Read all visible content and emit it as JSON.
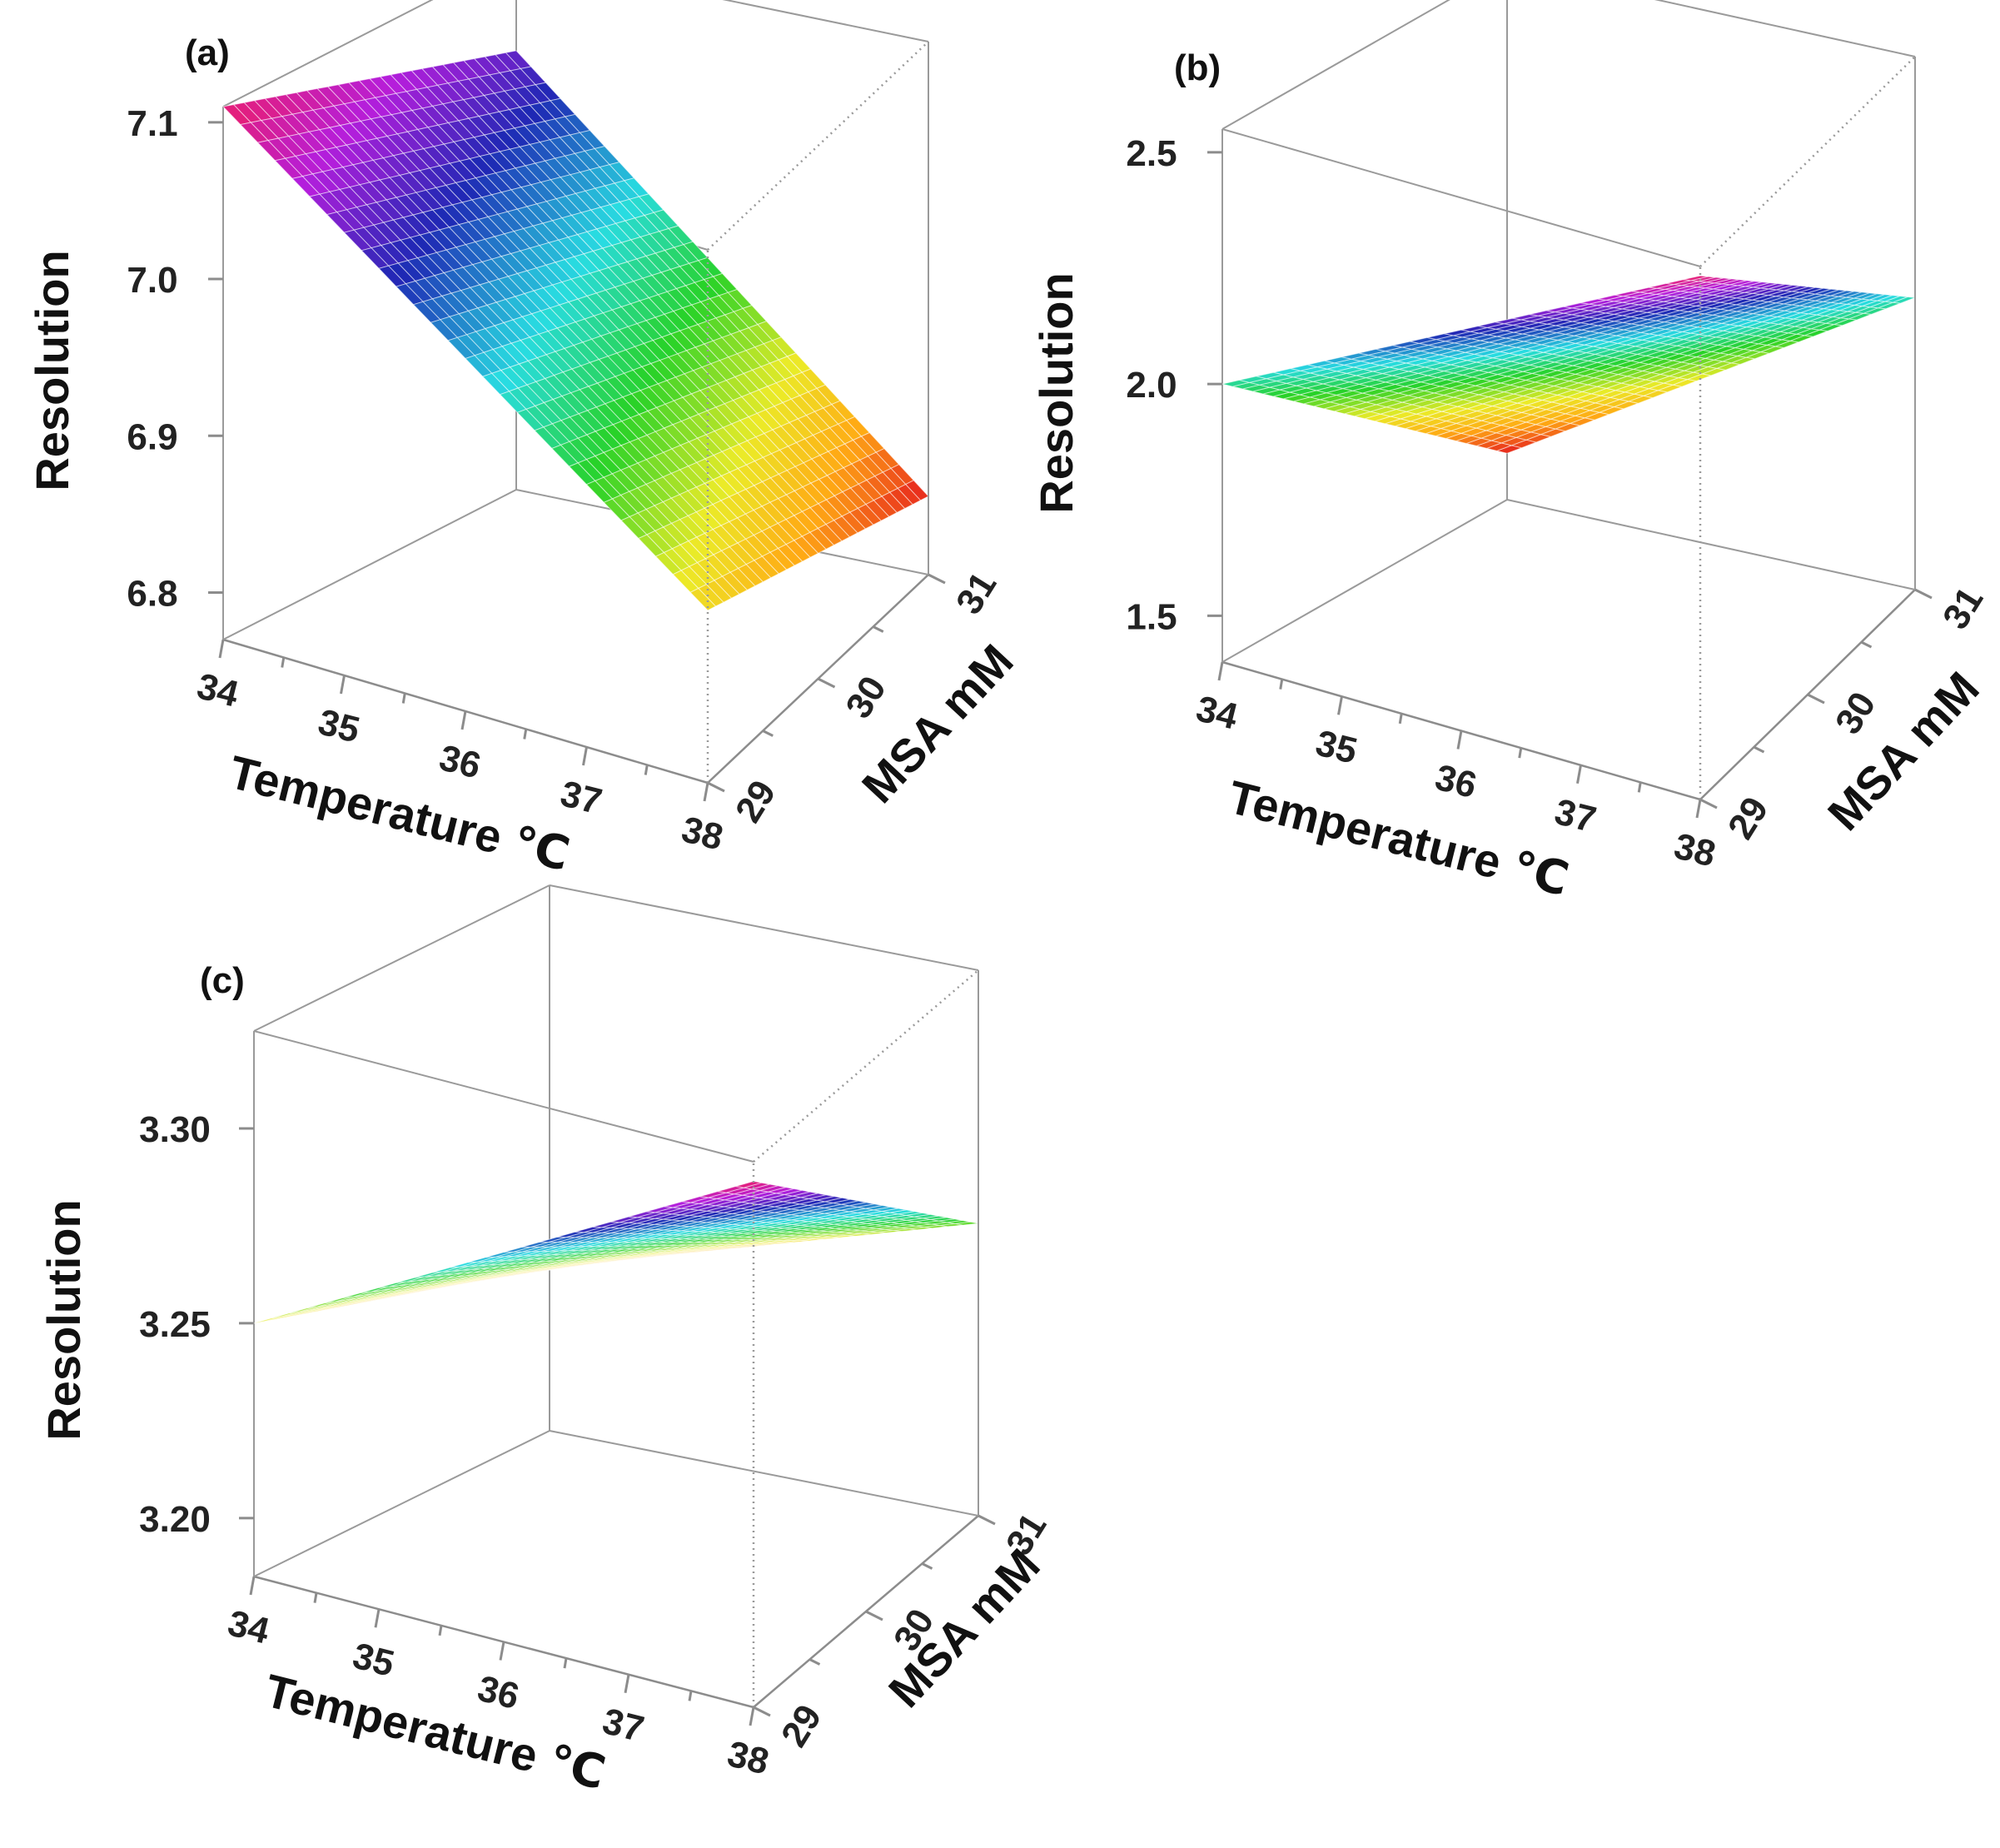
{
  "chart_data": [
    {
      "type": "surface3d",
      "panel_label": "(a)",
      "zlabel": "Resolution",
      "xlabel": "Temperature ℃",
      "ylabel": "MSA mM",
      "x_ticks": [
        "34",
        "35",
        "36",
        "37",
        "38"
      ],
      "y_ticks": [
        "29",
        "30",
        "31"
      ],
      "z_ticks": [
        "6.8",
        "6.9",
        "7.0",
        "7.1"
      ],
      "xlim": [
        34,
        38
      ],
      "ylim": [
        29,
        31
      ],
      "zlim": [
        6.77,
        7.11
      ],
      "surface_corners": {
        "t34_m29": 7.11,
        "t38_m29": 6.88,
        "t34_m31": 7.05,
        "t38_m31": 6.82
      },
      "colormap": "rainbow"
    },
    {
      "type": "surface3d",
      "panel_label": "(b)",
      "zlabel": "Resolution",
      "xlabel": "Temperature ℃",
      "ylabel": "MSA mM",
      "x_ticks": [
        "34",
        "35",
        "36",
        "37",
        "38"
      ],
      "y_ticks": [
        "29",
        "30",
        "31"
      ],
      "z_ticks": [
        "1.5",
        "2.0",
        "2.5"
      ],
      "xlim": [
        34,
        38
      ],
      "ylim": [
        29,
        31
      ],
      "zlim": [
        1.4,
        2.55
      ],
      "surface_corners": {
        "t34_m29": 2.0,
        "t38_m29": 2.53,
        "t34_m31": 1.5,
        "t38_m31": 2.03
      },
      "colormap": "rainbow"
    },
    {
      "type": "surface3d",
      "panel_label": "(c)",
      "zlabel": "Resolution",
      "xlabel": "Temperature ℃",
      "ylabel": "MSA mM",
      "x_ticks": [
        "34",
        "35",
        "36",
        "37",
        "38"
      ],
      "y_ticks": [
        "29",
        "30",
        "31"
      ],
      "z_ticks": [
        "3.20",
        "3.25",
        "3.30"
      ],
      "xlim": [
        34,
        38
      ],
      "ylim": [
        29,
        31
      ],
      "zlim": [
        3.185,
        3.325
      ],
      "surface_corners": {
        "t34_m29": 3.25,
        "t38_m29": 3.32,
        "t34_m31": 3.227,
        "t38_m31": 3.26
      },
      "colormap": "rainbow"
    }
  ]
}
